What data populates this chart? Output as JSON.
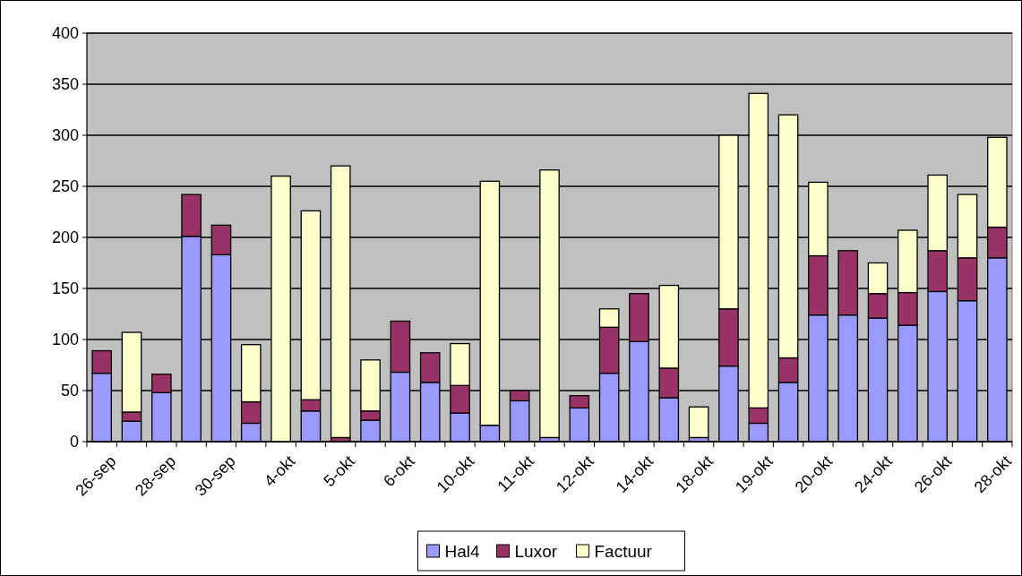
{
  "chart_data": {
    "type": "bar",
    "stacked": true,
    "categories": [
      "26-sep",
      null,
      "28-sep",
      null,
      "30-sep",
      null,
      "4-okt",
      null,
      "5-okt",
      null,
      "6-okt",
      null,
      "10-okt",
      null,
      "11-okt",
      null,
      "12-okt",
      null,
      "14-okt",
      null,
      "18-okt",
      null,
      "19-okt",
      null,
      "20-okt",
      null,
      "24-okt",
      null,
      "26-okt",
      null,
      "28-okt"
    ],
    "series": [
      {
        "name": "Hal4",
        "color": "#9999ff",
        "values": [
          67,
          20,
          48,
          201,
          183,
          18,
          0,
          30,
          0,
          21,
          68,
          58,
          28,
          16,
          40,
          4,
          33,
          67,
          98,
          43,
          4,
          74,
          18,
          58,
          124,
          124,
          121,
          114,
          147,
          138,
          180
        ]
      },
      {
        "name": "Luxor",
        "color": "#993366",
        "values": [
          22,
          9,
          18,
          41,
          29,
          21,
          0,
          11,
          4,
          9,
          50,
          29,
          27,
          0,
          10,
          0,
          12,
          45,
          47,
          29,
          0,
          56,
          15,
          24,
          58,
          63,
          24,
          32,
          40,
          42,
          30
        ]
      },
      {
        "name": "Factuur",
        "color": "#ffffcc",
        "values": [
          0,
          78,
          0,
          0,
          0,
          56,
          260,
          185,
          266,
          50,
          0,
          0,
          41,
          239,
          0,
          262,
          0,
          18,
          0,
          81,
          30,
          170,
          308,
          238,
          72,
          0,
          30,
          61,
          74,
          62,
          88
        ]
      }
    ],
    "ylim": [
      0,
      400
    ],
    "yticks": [
      0,
      50,
      100,
      150,
      200,
      250,
      300,
      350,
      400
    ],
    "grid": "y",
    "legend": "bottom"
  }
}
